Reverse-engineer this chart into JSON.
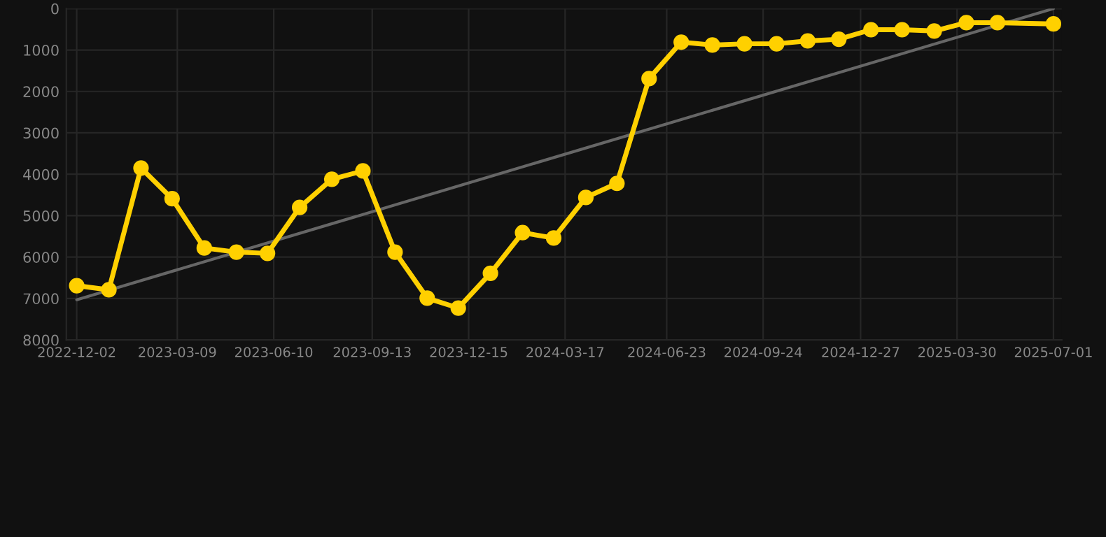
{
  "chart_data": {
    "type": "line",
    "ylim": [
      8000,
      0
    ],
    "yticks": [
      0,
      1000,
      2000,
      3000,
      4000,
      5000,
      6000,
      7000,
      8000
    ],
    "xlim": [
      "2022-11-22",
      "2025-07-09"
    ],
    "xticks": [
      {
        "value": "2022-12-02",
        "label": "2022-12-02"
      },
      {
        "value": "2023-03-09",
        "label": "2023-03-09"
      },
      {
        "value": "2023-06-10",
        "label": "2023-06-10"
      },
      {
        "value": "2023-09-13",
        "label": "2023-09-13"
      },
      {
        "value": "2023-12-15",
        "label": "2023-12-15"
      },
      {
        "value": "2024-03-17",
        "label": "2024-03-17"
      },
      {
        "value": "2024-06-23",
        "label": "2024-06-23"
      },
      {
        "value": "2024-09-24",
        "label": "2024-09-24"
      },
      {
        "value": "2024-12-27",
        "label": "2024-12-27"
      },
      {
        "value": "2025-03-30",
        "label": "2025-03-30"
      },
      {
        "value": "2025-07-01",
        "label": "2025-07-01"
      }
    ],
    "grid": true,
    "marker": "circle",
    "line_style": "solid",
    "series": [
      {
        "color": "#ffd000",
        "x": [
          "2022-12-02",
          "2023-01-02",
          "2023-02-02",
          "2023-03-04",
          "2023-04-04",
          "2023-05-05",
          "2023-06-04",
          "2023-07-05",
          "2023-08-05",
          "2023-09-04",
          "2023-10-05",
          "2023-11-05",
          "2023-12-05",
          "2024-01-05",
          "2024-02-05",
          "2024-03-06",
          "2024-04-06",
          "2024-05-06",
          "2024-06-06",
          "2024-07-07",
          "2024-08-06",
          "2024-09-06",
          "2024-10-07",
          "2024-11-06",
          "2024-12-06",
          "2025-01-06",
          "2025-02-05",
          "2025-03-08",
          "2025-04-08",
          "2025-05-08",
          "2025-07-01"
        ],
        "values": [
          6690,
          6790,
          3850,
          4590,
          5780,
          5880,
          5910,
          4800,
          4120,
          3920,
          5880,
          6990,
          7230,
          6390,
          5410,
          5540,
          4560,
          4220,
          1690,
          810,
          880,
          850,
          850,
          780,
          740,
          510,
          510,
          540,
          340,
          340,
          370
        ]
      },
      {
        "color": "#666666",
        "marker": "none",
        "x": [
          "2022-12-02",
          "2025-07-01"
        ],
        "values": [
          7030,
          0
        ]
      }
    ]
  }
}
